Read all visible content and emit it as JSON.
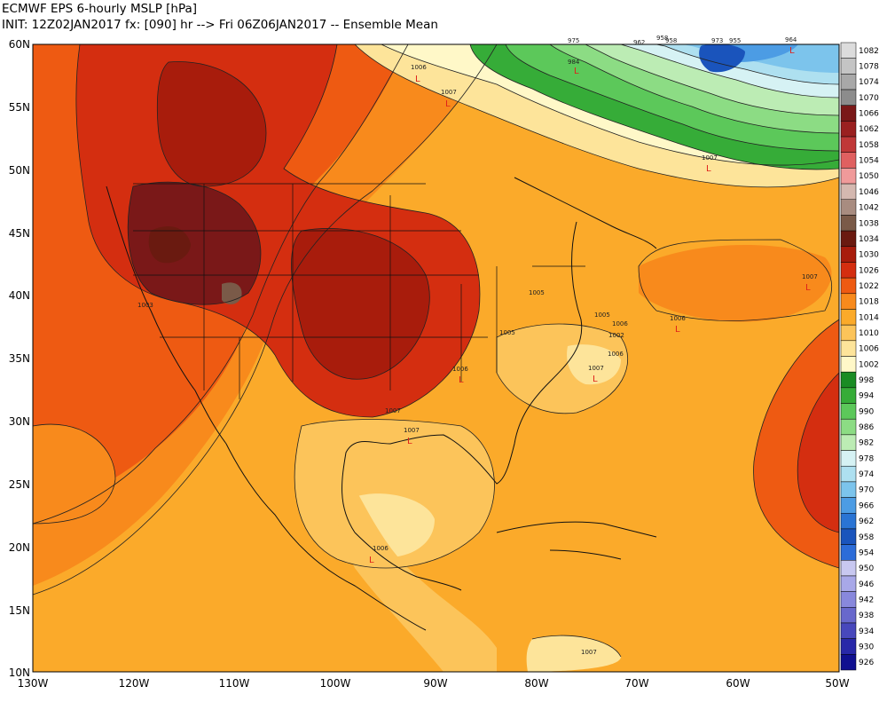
{
  "header": {
    "line1": "ECMWF EPS 6-hourly MSLP [hPa]",
    "line2": "INIT: 12Z02JAN2017 fx: [090] hr --> Fri 06Z06JAN2017 -- Ensemble Mean"
  },
  "map": {
    "region": "North America and western Atlantic",
    "lon_labels": [
      "130W",
      "120W",
      "110W",
      "100W",
      "90W",
      "80W",
      "70W",
      "60W",
      "50W"
    ],
    "lat_labels": [
      "60N",
      "55N",
      "50N",
      "45N",
      "40N",
      "35N",
      "30N",
      "25N",
      "20N",
      "15N",
      "10N"
    ],
    "contours_visible": true,
    "state_borders_visible": true
  },
  "colorbar": {
    "levels": [
      {
        "label": "1082",
        "color": "#dcdcdc"
      },
      {
        "label": "1078",
        "color": "#c4c4c4"
      },
      {
        "label": "1074",
        "color": "#a8a8a8"
      },
      {
        "label": "1070",
        "color": "#8c8c8c"
      },
      {
        "label": "1066",
        "color": "#7a1818"
      },
      {
        "label": "1062",
        "color": "#9a2020"
      },
      {
        "label": "1058",
        "color": "#c03838"
      },
      {
        "label": "1054",
        "color": "#e06060"
      },
      {
        "label": "1050",
        "color": "#f09a9a"
      },
      {
        "label": "1046",
        "color": "#d4b8b0"
      },
      {
        "label": "1042",
        "color": "#a88c80"
      },
      {
        "label": "1038",
        "color": "#7a5a48"
      },
      {
        "label": "1034",
        "color": "#6a1a10"
      },
      {
        "label": "1030",
        "color": "#a81c0c"
      },
      {
        "label": "1026",
        "color": "#d42e10"
      },
      {
        "label": "1022",
        "color": "#ee5a12"
      },
      {
        "label": "1018",
        "color": "#f88a1c"
      },
      {
        "label": "1014",
        "color": "#fbaa2a"
      },
      {
        "label": "1010",
        "color": "#fcc45a"
      },
      {
        "label": "1006",
        "color": "#fde49a"
      },
      {
        "label": "1002",
        "color": "#fff8c8"
      },
      {
        "label": "998",
        "color": "#1a8c24"
      },
      {
        "label": "994",
        "color": "#36ac38"
      },
      {
        "label": "990",
        "color": "#5cc85a"
      },
      {
        "label": "986",
        "color": "#8cdc84"
      },
      {
        "label": "982",
        "color": "#bcecb4"
      },
      {
        "label": "978",
        "color": "#d6f2f4"
      },
      {
        "label": "974",
        "color": "#aee0f0"
      },
      {
        "label": "970",
        "color": "#7cc4ec"
      },
      {
        "label": "966",
        "color": "#4c9ce4"
      },
      {
        "label": "962",
        "color": "#2a74d4"
      },
      {
        "label": "958",
        "color": "#1a54bc"
      },
      {
        "label": "954",
        "color": "#2c6cd8"
      },
      {
        "label": "950",
        "color": "#c8c8f0"
      },
      {
        "label": "946",
        "color": "#a8a8e8"
      },
      {
        "label": "942",
        "color": "#8888dc"
      },
      {
        "label": "938",
        "color": "#6868cc"
      },
      {
        "label": "934",
        "color": "#4848bc"
      },
      {
        "label": "930",
        "color": "#2828a8"
      },
      {
        "label": "926",
        "color": "#101090"
      }
    ]
  },
  "isobar_labels": [
    "1006",
    "1007",
    "1003",
    "1005",
    "1006",
    "1007",
    "1005",
    "1006",
    "1007",
    "1006",
    "1007",
    "1005",
    "1006",
    "1002",
    "1007",
    "1007",
    "1006",
    "1007",
    "975",
    "962",
    "958",
    "973",
    "964",
    "955",
    "958",
    "984"
  ],
  "lows_marker": "L"
}
